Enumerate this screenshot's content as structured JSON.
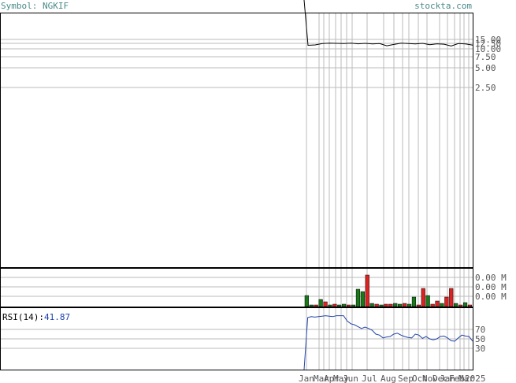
{
  "header": {
    "symbol_text": "Symbol: NGKIF",
    "site_text": "stockta.com"
  },
  "colors": {
    "price_line": "#000000",
    "grid": "#bbbbbb",
    "volume_up": "#1a7a1a",
    "volume_down": "#dd2222",
    "rsi_line": "#2244aa",
    "header_text": "#4a8a8a"
  },
  "chart_data": [
    {
      "type": "line",
      "name": "price",
      "y_ticks": [
        "15.00",
        "12.50",
        "10.00",
        "7.50",
        "5.00",
        "2.50"
      ],
      "y_tick_values": [
        15.0,
        12.5,
        10.0,
        7.5,
        5.0,
        2.5
      ],
      "x_labels": [
        "Jan",
        "Mar",
        "Apr",
        "May",
        "Jun",
        "Jul",
        "Aug",
        "Sep",
        "Oct",
        "Nov",
        "Dec",
        "Jan",
        "Feb",
        "Mar",
        "2025"
      ],
      "values": [
        11.6,
        11.8,
        12.4,
        12.6,
        12.5,
        12.4,
        12.6,
        12.3,
        12.5,
        12.2,
        12.4,
        11.4,
        12.0,
        12.6,
        12.4,
        12.2,
        12.5,
        11.9,
        12.3,
        12.1,
        11.3,
        12.4,
        12.2,
        11.7
      ]
    },
    {
      "type": "bar",
      "name": "volume",
      "y_ticks": [
        "0.00 M",
        "0.00 M",
        "0.00 M"
      ],
      "bars": [
        {
          "v": 14,
          "c": "up"
        },
        {
          "v": 2,
          "c": "up"
        },
        {
          "v": 2,
          "c": "down"
        },
        {
          "v": 9,
          "c": "up"
        },
        {
          "v": 6,
          "c": "down"
        },
        {
          "v": 2,
          "c": "up"
        },
        {
          "v": 3,
          "c": "down"
        },
        {
          "v": 2,
          "c": "up"
        },
        {
          "v": 3,
          "c": "up"
        },
        {
          "v": 2,
          "c": "down"
        },
        {
          "v": 2,
          "c": "up"
        },
        {
          "v": 22,
          "c": "up"
        },
        {
          "v": 19,
          "c": "up"
        },
        {
          "v": 40,
          "c": "down"
        },
        {
          "v": 4,
          "c": "up"
        },
        {
          "v": 3,
          "c": "down"
        },
        {
          "v": 2,
          "c": "up"
        },
        {
          "v": 3,
          "c": "down"
        },
        {
          "v": 3,
          "c": "down"
        },
        {
          "v": 4,
          "c": "up"
        },
        {
          "v": 3,
          "c": "up"
        },
        {
          "v": 4,
          "c": "down"
        },
        {
          "v": 3,
          "c": "up"
        },
        {
          "v": 12,
          "c": "up"
        },
        {
          "v": 2,
          "c": "down"
        },
        {
          "v": 23,
          "c": "down"
        },
        {
          "v": 14,
          "c": "up"
        },
        {
          "v": 3,
          "c": "down"
        },
        {
          "v": 7,
          "c": "down"
        },
        {
          "v": 4,
          "c": "up"
        },
        {
          "v": 12,
          "c": "down"
        },
        {
          "v": 23,
          "c": "down"
        },
        {
          "v": 4,
          "c": "up"
        },
        {
          "v": 2,
          "c": "down"
        },
        {
          "v": 5,
          "c": "up"
        },
        {
          "v": 2,
          "c": "down"
        }
      ]
    },
    {
      "type": "line",
      "name": "rsi",
      "label": "RSI(14):",
      "current": "41.87",
      "y_ticks": [
        "70",
        "50",
        "30"
      ],
      "y_tick_values": [
        70,
        50,
        30
      ],
      "values": [
        0,
        95,
        97,
        96,
        97,
        98,
        99,
        98,
        97,
        99,
        99,
        99,
        88,
        82,
        80,
        76,
        72,
        75,
        72,
        68,
        60,
        58,
        52,
        54,
        55,
        60,
        62,
        58,
        55,
        53,
        52,
        60,
        58,
        51,
        55,
        50,
        48,
        50,
        55,
        56,
        52,
        46,
        45,
        52,
        58,
        56,
        55,
        45
      ]
    }
  ]
}
